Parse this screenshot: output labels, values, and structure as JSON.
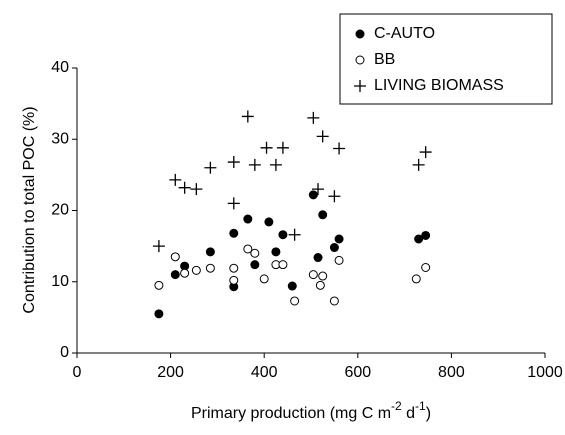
{
  "chart_data": {
    "type": "scatter",
    "y_label": "Contribution  to total  POC (%)",
    "x_label": {
      "a": "Primary production (mg C m",
      "s1": "-2",
      "b": " d",
      "s2": "-1",
      "c": ")"
    },
    "xlim": [
      0,
      1000
    ],
    "xticks": [
      0,
      200,
      400,
      600,
      800,
      1000
    ],
    "ylim": [
      0,
      40
    ],
    "yticks": [
      0,
      10,
      20,
      30,
      40
    ],
    "grid": false,
    "legend": "top-right",
    "series": [
      {
        "name": "C-AUTO",
        "color": "#000000",
        "marker": "filled-circle",
        "x": [
          175,
          210,
          230,
          285,
          335,
          335,
          365,
          380,
          410,
          425,
          440,
          460,
          505,
          515,
          525,
          550,
          560,
          730,
          745
        ],
        "values": [
          5.5,
          11,
          12.2,
          14.2,
          9.3,
          16.8,
          18.8,
          12.4,
          18.4,
          14.2,
          16.6,
          9.4,
          22.2,
          13.4,
          19.4,
          14.8,
          16,
          16,
          16.5
        ]
      },
      {
        "name": "BB",
        "color": "#000000",
        "marker": "open-circle",
        "x": [
          175,
          210,
          230,
          255,
          285,
          335,
          335,
          365,
          380,
          400,
          425,
          440,
          465,
          505,
          520,
          525,
          550,
          560,
          725,
          745
        ],
        "values": [
          9.5,
          13.5,
          11.2,
          11.6,
          11.9,
          10.2,
          11.9,
          14.6,
          14,
          10.4,
          12.4,
          12.4,
          7.3,
          11,
          9.5,
          10.8,
          7.3,
          13,
          10.4,
          12
        ]
      },
      {
        "name": "LIVING BIOMASS",
        "color": "#000000",
        "marker": "plus",
        "x": [
          175,
          210,
          230,
          255,
          285,
          335,
          335,
          365,
          380,
          405,
          425,
          440,
          465,
          505,
          515,
          525,
          550,
          560,
          730,
          745
        ],
        "values": [
          15,
          24.3,
          23.2,
          23,
          26,
          26.8,
          21,
          33.2,
          26.4,
          28.8,
          26.4,
          28.8,
          16.6,
          33,
          23,
          30.4,
          22,
          28.7,
          26.4,
          28.2
        ]
      }
    ]
  }
}
